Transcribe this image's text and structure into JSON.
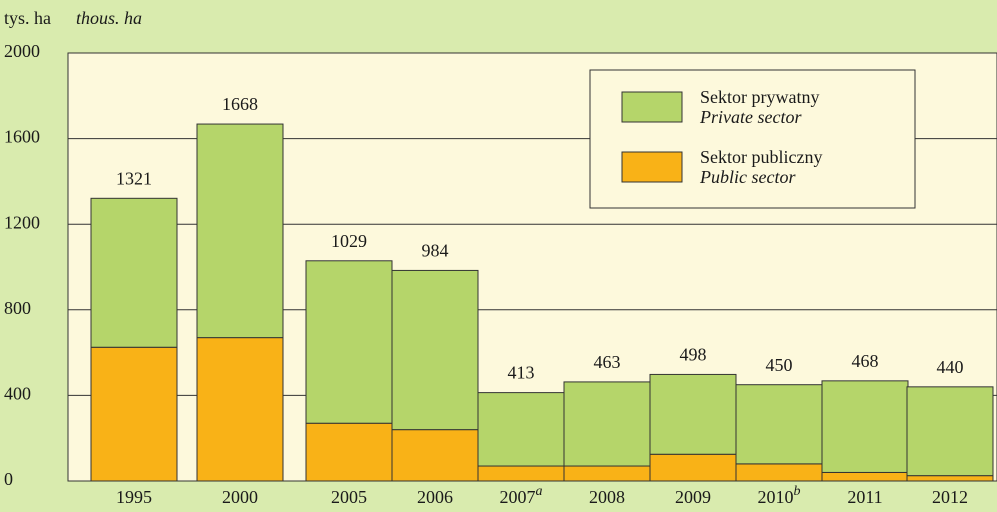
{
  "chart_data": {
    "type": "stacked_bar",
    "y_label": "tys. ha",
    "y_label_en": "thous. ha",
    "categories": [
      "1995",
      "2000",
      "2005",
      "2006",
      "2007",
      "2008",
      "2009",
      "2010",
      "2011",
      "2012"
    ],
    "category_notes": [
      null,
      null,
      null,
      null,
      "a",
      null,
      null,
      "b",
      null,
      null
    ],
    "series": [
      {
        "name": "Sektor publiczny",
        "name_en": "Public sector",
        "color": "#f9b217",
        "values": [
          625,
          670,
          270,
          240,
          70,
          70,
          125,
          80,
          40,
          25
        ]
      },
      {
        "name": "Sektor prywatny",
        "name_en": "Private sector",
        "color": "#b5d56a",
        "values": [
          696,
          998,
          759,
          744,
          343,
          393,
          373,
          370,
          428,
          415
        ]
      }
    ],
    "totals": [
      1321,
      1668,
      1029,
      984,
      413,
      463,
      498,
      450,
      468,
      440
    ],
    "ylim": [
      0,
      2000
    ],
    "yticks": [
      0,
      400,
      800,
      1200,
      1600,
      2000
    ],
    "grid": true
  }
}
